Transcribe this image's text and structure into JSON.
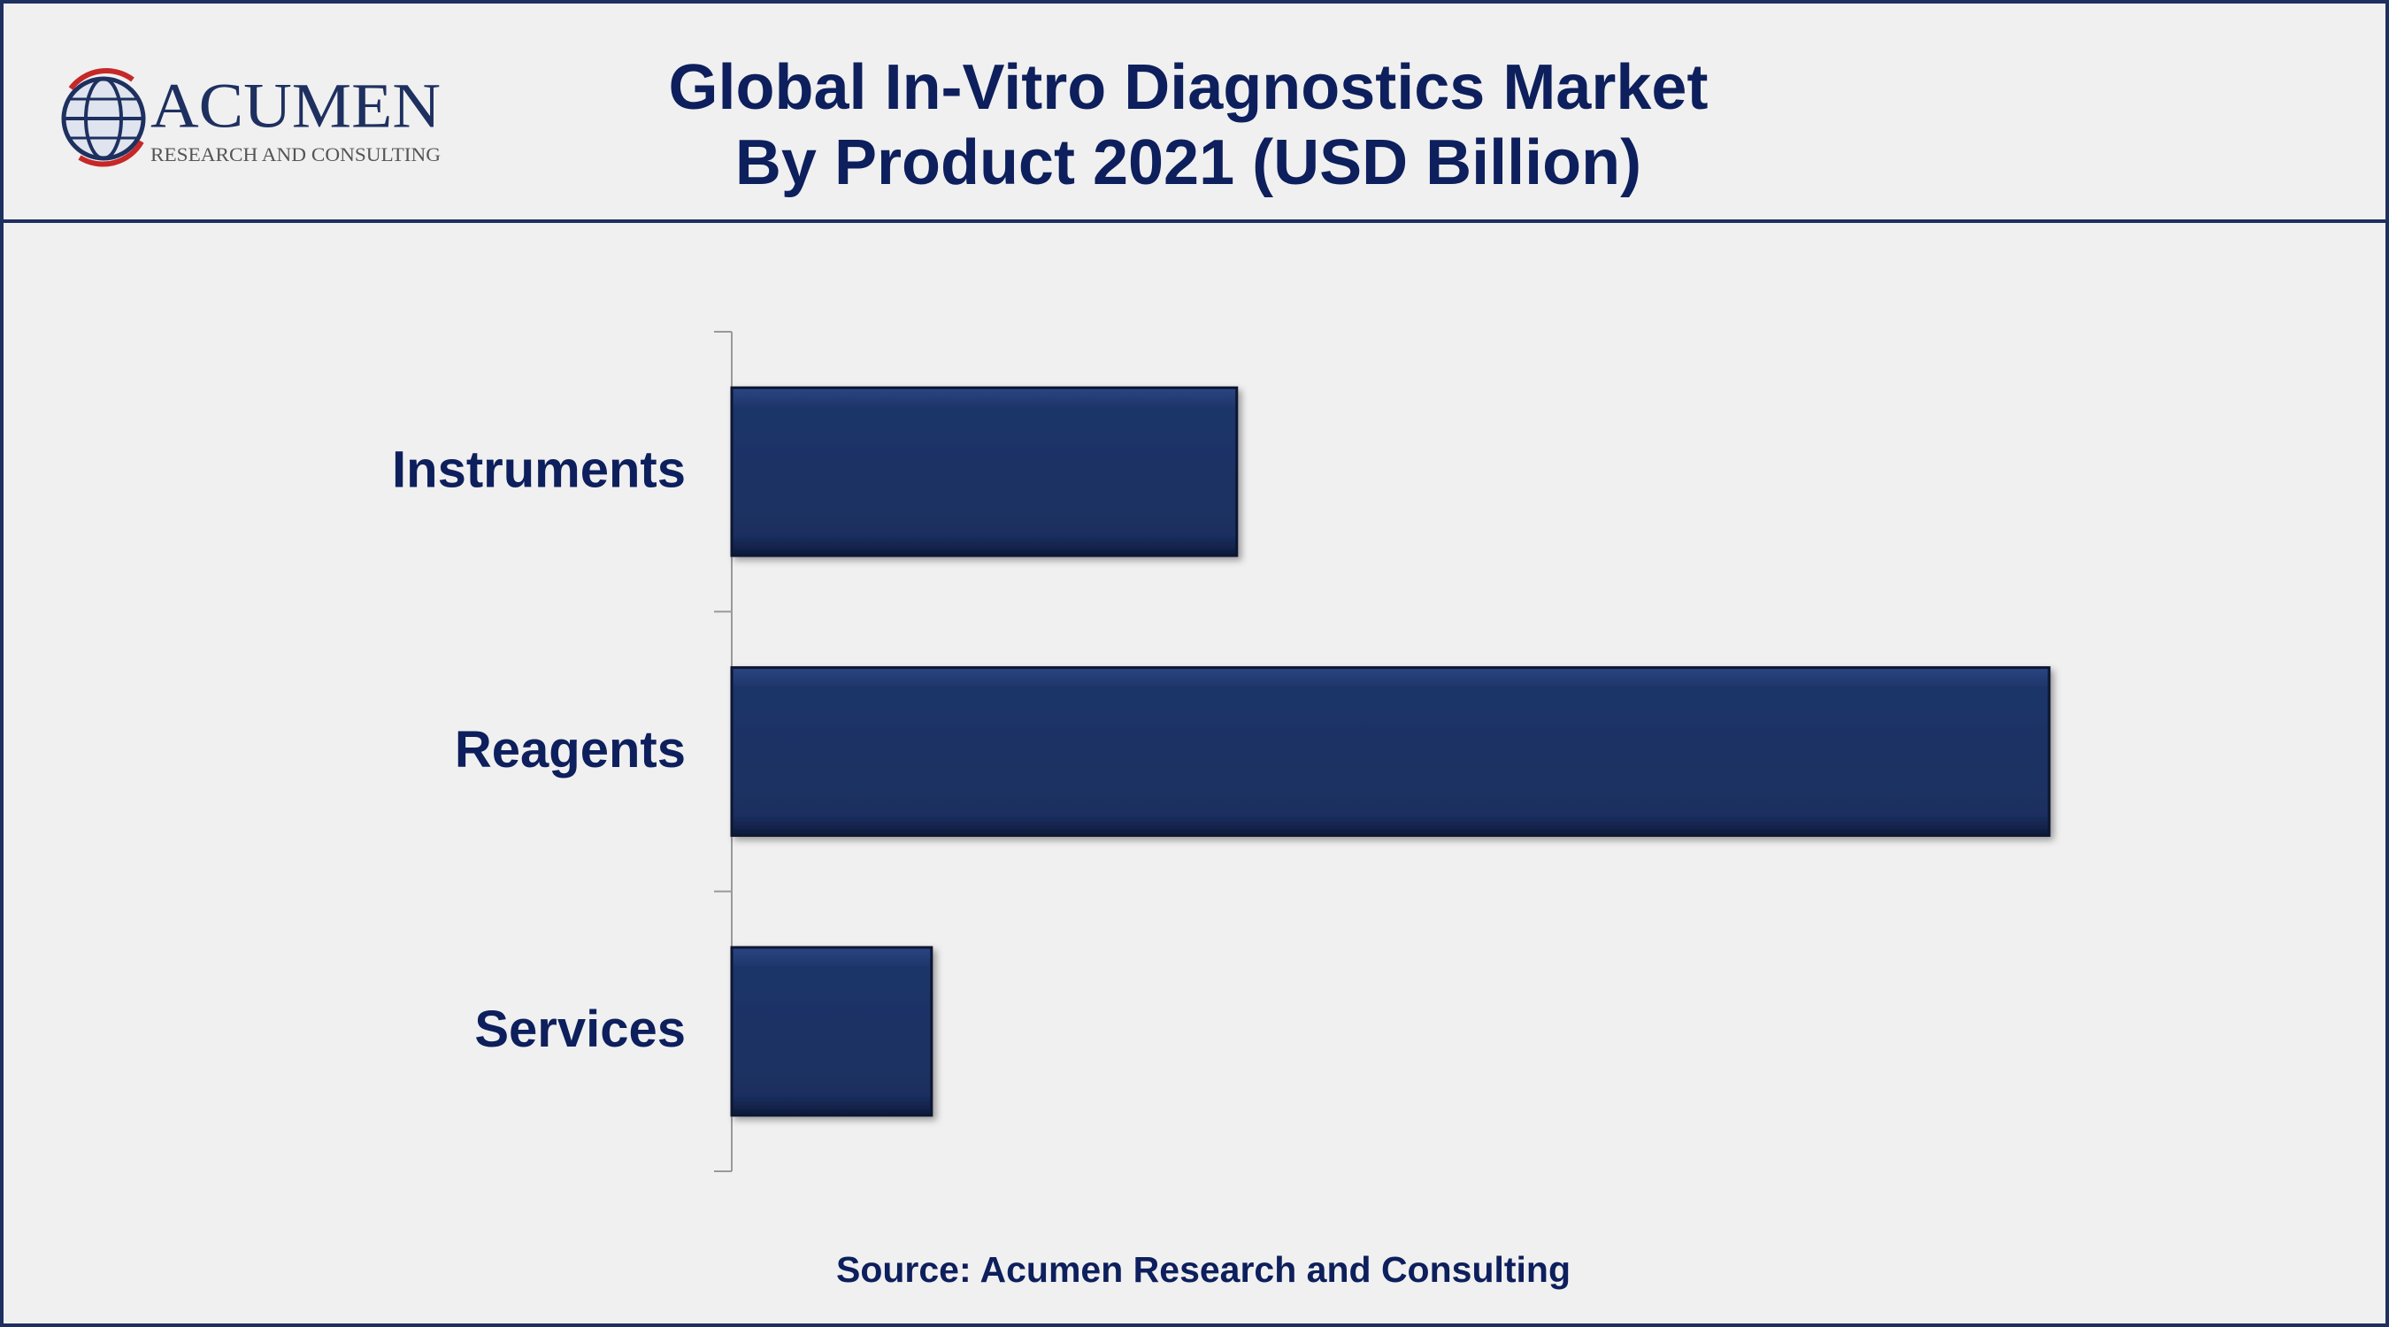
{
  "logo": {
    "name": "ACUMEN",
    "tagline": "RESEARCH AND CONSULTING"
  },
  "chart_data": {
    "type": "hbar",
    "title": [
      "Global In-Vitro Diagnostics Market",
      "By Product 2021 (USD Billion)"
    ],
    "categories": [
      "Instruments",
      "Reagents",
      "Services"
    ],
    "values": [
      23,
      60,
      9.1
    ],
    "color": "#1c3264",
    "xlim": [
      0,
      65
    ],
    "source": "Source: Acumen Research and Consulting"
  }
}
